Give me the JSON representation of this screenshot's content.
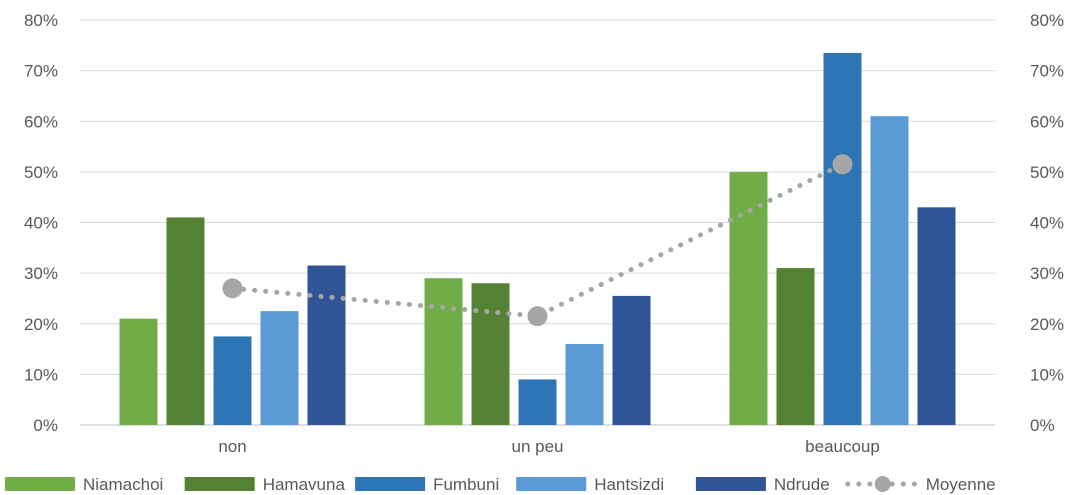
{
  "chart_data": {
    "type": "bar",
    "categories": [
      "non",
      "un peu",
      "beaucoup"
    ],
    "series": [
      {
        "name": "Niamachoi",
        "color": "#70ad47",
        "values": [
          0.21,
          0.29,
          0.5
        ]
      },
      {
        "name": "Hamavuna",
        "color": "#548235",
        "values": [
          0.41,
          0.28,
          0.31
        ]
      },
      {
        "name": "Fumbuni",
        "color": "#2e75b6",
        "values": [
          0.175,
          0.09,
          0.735
        ]
      },
      {
        "name": "Hantsizdi",
        "color": "#5b9bd5",
        "values": [
          0.225,
          0.16,
          0.61
        ]
      },
      {
        "name": "Ndrude",
        "color": "#2f5597",
        "values": [
          0.315,
          0.255,
          0.43
        ]
      }
    ],
    "line_series": {
      "name": "Moyenne",
      "type": "line",
      "style": "dotted",
      "marker": "circle",
      "color": "#a6a6a6",
      "values": [
        0.27,
        0.215,
        0.515
      ]
    },
    "ylim": [
      0,
      0.8
    ],
    "y_ticks": [
      "0%",
      "10%",
      "20%",
      "30%",
      "40%",
      "50%",
      "60%",
      "70%",
      "80%"
    ],
    "secondary_y_ticks": [
      "0%",
      "10%",
      "20%",
      "30%",
      "40%",
      "50%",
      "60%",
      "70%",
      "80%"
    ],
    "grid": true,
    "legend_position": "bottom"
  }
}
